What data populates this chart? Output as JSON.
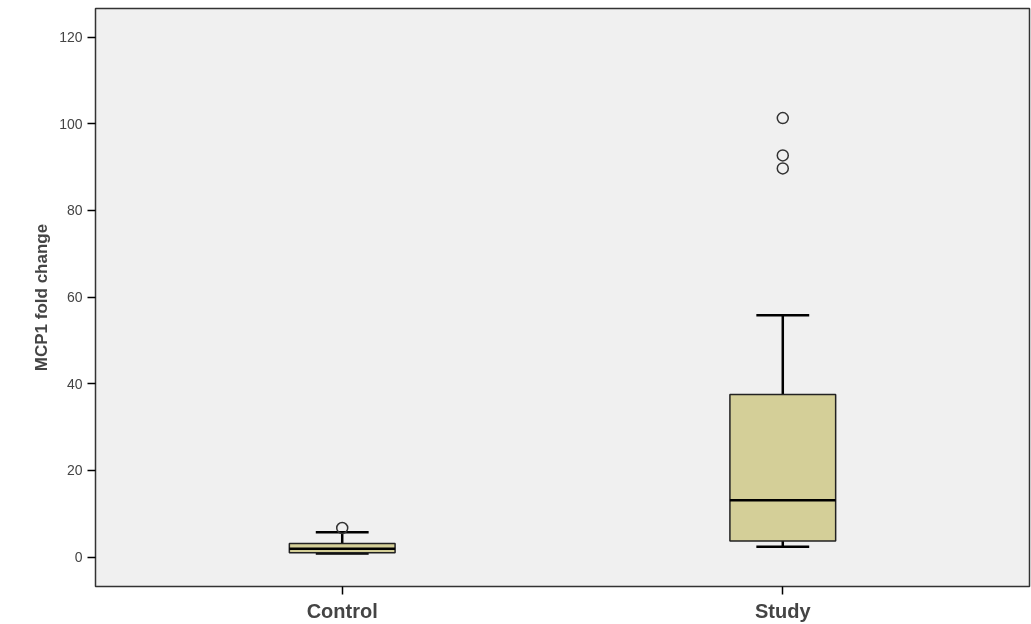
{
  "chart_data": {
    "type": "box",
    "ylabel": "MCP1 fold change",
    "categories": [
      "Control",
      "Study"
    ],
    "boxes": [
      {
        "low": 0.8,
        "q1": 1.0,
        "median": 1.9,
        "q3": 3.1,
        "high": 5.7,
        "outliers": [
          6.7
        ]
      },
      {
        "low": 2.4,
        "q1": 3.7,
        "median": 13.1,
        "q3": 37.5,
        "high": 55.8,
        "outliers": [
          101.3,
          92.7,
          89.7
        ]
      }
    ],
    "color": "#d4cf98",
    "ylim": [
      -6.8,
      126.6
    ],
    "yticks": [
      0,
      20,
      40,
      60,
      80,
      100,
      120
    ],
    "grid": false,
    "marker": "circle"
  }
}
